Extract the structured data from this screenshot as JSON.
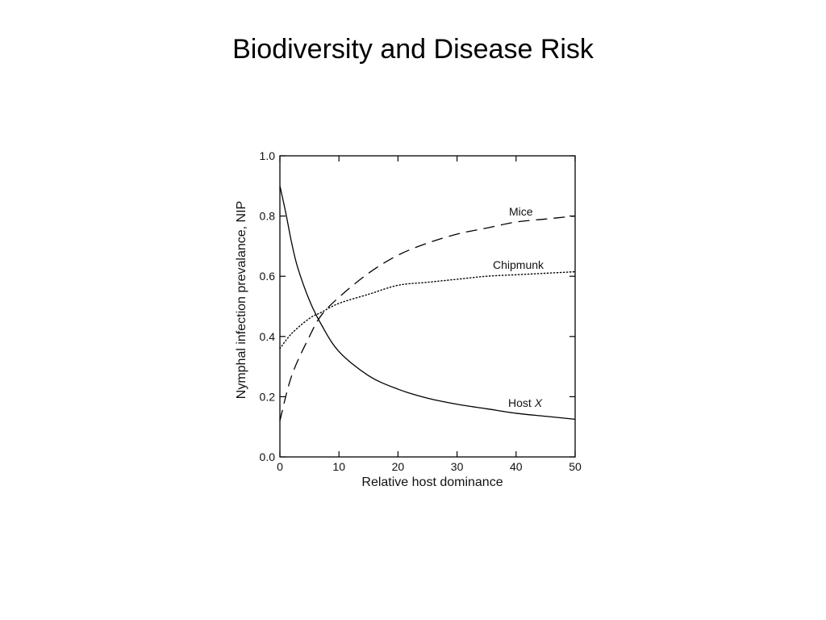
{
  "slide": {
    "title": "Biodiversity and Disease Risk"
  },
  "chart_data": {
    "type": "line",
    "title": "",
    "xlabel": "Relative host dominance",
    "ylabel": "Nymphal infection prevalance, NIP",
    "xlim": [
      0,
      50
    ],
    "ylim": [
      0.0,
      1.0
    ],
    "xticks": [
      0,
      10,
      20,
      30,
      40,
      50
    ],
    "xtick_labels": [
      "0",
      "10",
      "20",
      "30",
      "40",
      "50"
    ],
    "yticks": [
      0.0,
      0.2,
      0.4,
      0.6,
      0.8,
      1.0
    ],
    "ytick_labels": [
      "0.0",
      "0.2",
      "0.4",
      "0.6",
      "0.8",
      "1.0"
    ],
    "grid": false,
    "series": [
      {
        "name": "Mice",
        "style": "dashed",
        "color": "#000000",
        "x": [
          0,
          2,
          5,
          7,
          10,
          15,
          20,
          25,
          30,
          35,
          40,
          45,
          50
        ],
        "y": [
          0.12,
          0.27,
          0.4,
          0.47,
          0.53,
          0.61,
          0.67,
          0.71,
          0.74,
          0.76,
          0.78,
          0.79,
          0.8
        ]
      },
      {
        "name": "Chipmunk",
        "style": "dotted",
        "color": "#000000",
        "x": [
          0,
          2,
          5,
          7,
          10,
          15,
          20,
          25,
          30,
          35,
          40,
          45,
          50
        ],
        "y": [
          0.36,
          0.41,
          0.46,
          0.48,
          0.51,
          0.54,
          0.57,
          0.58,
          0.59,
          0.6,
          0.605,
          0.61,
          0.615
        ]
      },
      {
        "name": "Host X",
        "label_main": "Host ",
        "label_italic": "X",
        "style": "solid",
        "color": "#000000",
        "x": [
          0,
          1,
          2,
          3,
          5,
          7,
          10,
          15,
          20,
          25,
          30,
          35,
          40,
          45,
          50
        ],
        "y": [
          0.9,
          0.81,
          0.71,
          0.63,
          0.52,
          0.44,
          0.35,
          0.27,
          0.225,
          0.195,
          0.175,
          0.16,
          0.145,
          0.135,
          0.125
        ]
      }
    ]
  }
}
